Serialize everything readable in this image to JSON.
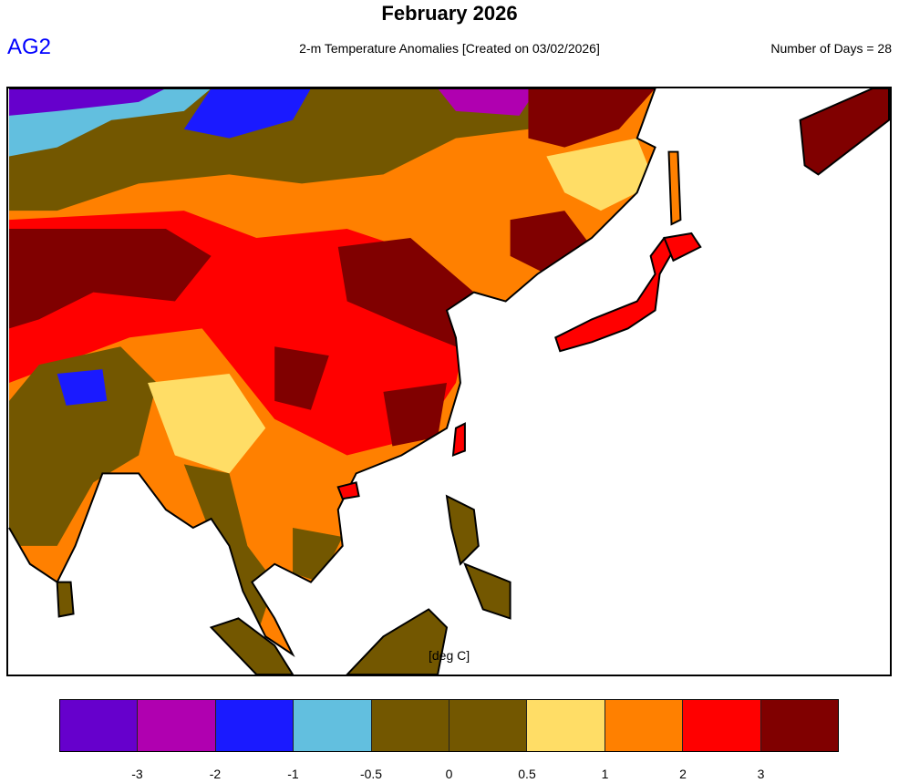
{
  "header": {
    "title": "February 2026",
    "model": "AG2",
    "subtitle": "2-m Temperature Anomalies [Created on 03/02/2026]",
    "days": "Number of Days = 28"
  },
  "map": {
    "units_label": "[deg C]",
    "ocean_color": "#ffffff",
    "coastline_color": "#000000"
  },
  "colorbar": {
    "colors": [
      "#6600cc",
      "#b000b0",
      "#1a1aff",
      "#62bfdf",
      "#735700",
      "#735700",
      "#ffdd66",
      "#ff8000",
      "#ff0000",
      "#800000"
    ],
    "ticks": [
      "-3",
      "-2",
      "-1",
      "-0.5",
      "0",
      "0.5",
      "1",
      "2",
      "3"
    ]
  }
}
